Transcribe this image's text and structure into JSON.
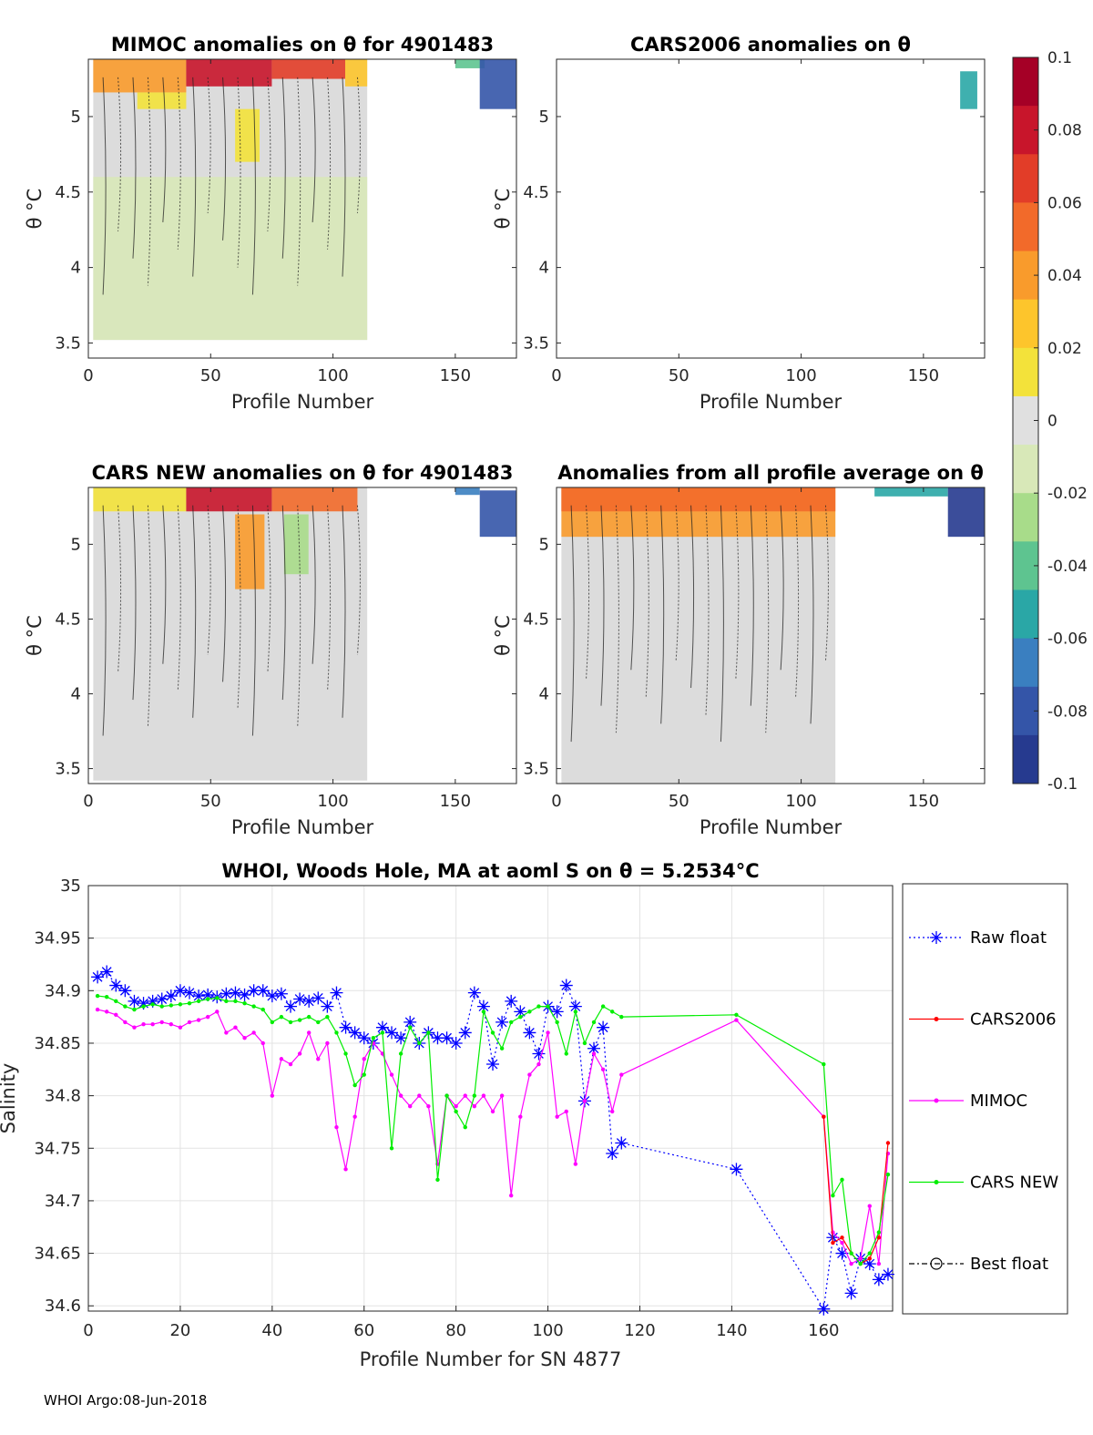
{
  "footer": "WHOI Argo:08-Jun-2018",
  "colorbar": {
    "ticks": [
      "0.1",
      "0.08",
      "0.06",
      "0.04",
      "0.02",
      "0",
      "-0.02",
      "-0.04",
      "-0.06",
      "-0.08",
      "-0.1"
    ],
    "colors": [
      "#a50026",
      "#c8152b",
      "#e23d28",
      "#f26a2a",
      "#f99b2c",
      "#fdc52c",
      "#f3e23a",
      "#e0e0e0",
      "#d8e8b8",
      "#a8dc8a",
      "#5ec490",
      "#2aa7a6",
      "#3a7fc0",
      "#3455a8",
      "#263a8f"
    ]
  },
  "panels": [
    {
      "title": "MIMOC anomalies on θ  for 4901483",
      "xlabel": "Profile Number",
      "ylabel": "θ °C",
      "xticks": [
        "0",
        "50",
        "100",
        "150"
      ],
      "yticks": [
        "5",
        "4.5",
        "4",
        "3.5"
      ],
      "xlim": [
        0,
        175
      ],
      "ylim": [
        3.4,
        5.38
      ],
      "extent": [
        2,
        114
      ],
      "ybottom": 3.52,
      "blocks": [
        [
          2,
          40,
          5.16,
          5.38,
          "#f99b2c"
        ],
        [
          40,
          75,
          5.2,
          5.38,
          "#c8152b"
        ],
        [
          75,
          105,
          5.25,
          5.38,
          "#e23d28"
        ],
        [
          105,
          114,
          5.2,
          5.38,
          "#fdc52c"
        ],
        [
          20,
          40,
          5.05,
          5.16,
          "#f3e23a"
        ],
        [
          60,
          70,
          4.7,
          5.05,
          "#f3e23a"
        ],
        [
          2,
          114,
          3.52,
          4.6,
          "#d8e8b8"
        ],
        [
          150,
          162,
          5.32,
          5.38,
          "#5ec490"
        ],
        [
          160,
          175,
          5.05,
          5.38,
          "#3455a8"
        ]
      ]
    },
    {
      "title": "CARS2006 anomalies on θ",
      "xlabel": "Profile Number",
      "ylabel": "θ °C",
      "xticks": [
        "0",
        "50",
        "100",
        "150"
      ],
      "yticks": [
        "5",
        "4.5",
        "4",
        "3.5"
      ],
      "xlim": [
        0,
        175
      ],
      "ylim": [
        3.4,
        5.38
      ],
      "extent": null,
      "ybottom": null,
      "blocks": [
        [
          165,
          172,
          5.05,
          5.3,
          "#2aa7a6"
        ]
      ]
    },
    {
      "title": "CARS NEW anomalies on θ for 4901483",
      "xlabel": "Profile Number",
      "ylabel": "θ °C",
      "xticks": [
        "0",
        "50",
        "100",
        "150"
      ],
      "yticks": [
        "5",
        "4.5",
        "4",
        "3.5"
      ],
      "xlim": [
        0,
        175
      ],
      "ylim": [
        3.4,
        5.38
      ],
      "extent": [
        2,
        114
      ],
      "ybottom": 3.42,
      "blocks": [
        [
          2,
          40,
          5.22,
          5.38,
          "#f3e23a"
        ],
        [
          40,
          75,
          5.22,
          5.38,
          "#c8152b"
        ],
        [
          75,
          110,
          5.22,
          5.38,
          "#f26a2a"
        ],
        [
          60,
          72,
          4.7,
          5.2,
          "#f99b2c"
        ],
        [
          80,
          90,
          4.8,
          5.2,
          "#a8dc8a"
        ],
        [
          150,
          160,
          5.33,
          5.38,
          "#3a7fc0"
        ],
        [
          160,
          175,
          5.05,
          5.36,
          "#3455a8"
        ]
      ]
    },
    {
      "title": "Anomalies from all profile average on θ",
      "xlabel": "Profile Number",
      "ylabel": "θ °C",
      "xticks": [
        "0",
        "50",
        "100",
        "150"
      ],
      "yticks": [
        "5",
        "4.5",
        "4",
        "3.5"
      ],
      "xlim": [
        0,
        175
      ],
      "ylim": [
        3.4,
        5.38
      ],
      "extent": [
        2,
        114
      ],
      "ybottom": 3.38,
      "blocks": [
        [
          2,
          114,
          5.05,
          5.38,
          "#f99b2c"
        ],
        [
          2,
          114,
          5.22,
          5.38,
          "#f26a2a"
        ],
        [
          130,
          160,
          5.32,
          5.38,
          "#2aa7a6"
        ],
        [
          160,
          175,
          5.05,
          5.38,
          "#263a8f"
        ]
      ]
    }
  ],
  "chart_data": {
    "type": "line",
    "title": "WHOI, Woods Hole, MA at aoml S on θ = 5.2534°C",
    "xlabel": "Profile Number for SN 4877",
    "ylabel": "Salinity",
    "xlim": [
      0,
      175
    ],
    "ylim": [
      34.595,
      35.0
    ],
    "xticks": [
      "0",
      "20",
      "40",
      "60",
      "80",
      "100",
      "120",
      "140",
      "160"
    ],
    "yticks": [
      "35",
      "34.95",
      "34.9",
      "34.85",
      "34.8",
      "34.75",
      "34.7",
      "34.65",
      "34.6"
    ],
    "grid": true,
    "legend": [
      "Raw float",
      "CARS2006",
      "MIMOC",
      "CARS NEW",
      "Best float"
    ],
    "colors": {
      "raw": "#0000ff",
      "cars2006": "#ff0000",
      "mimoc": "#ff00ff",
      "carsnew": "#00ee00",
      "best": "#000000"
    },
    "series": [
      {
        "name": "Raw float",
        "x": [
          2,
          4,
          6,
          8,
          10,
          12,
          14,
          16,
          18,
          20,
          22,
          24,
          26,
          28,
          30,
          32,
          34,
          36,
          38,
          40,
          42,
          44,
          46,
          48,
          50,
          52,
          54,
          56,
          58,
          60,
          62,
          64,
          66,
          68,
          70,
          72,
          74,
          76,
          78,
          80,
          82,
          84,
          86,
          88,
          90,
          92,
          94,
          96,
          98,
          100,
          102,
          104,
          106,
          108,
          110,
          112,
          114,
          116,
          141,
          160,
          162,
          164,
          166,
          168,
          170,
          172,
          174
        ],
        "y": [
          34.913,
          34.918,
          34.905,
          34.9,
          34.89,
          34.888,
          34.89,
          34.892,
          34.895,
          34.9,
          34.898,
          34.895,
          34.896,
          34.894,
          34.897,
          34.898,
          34.896,
          34.9,
          34.9,
          34.895,
          34.897,
          34.885,
          34.892,
          34.89,
          34.893,
          34.885,
          34.898,
          34.865,
          34.86,
          34.855,
          34.85,
          34.865,
          34.86,
          34.855,
          34.87,
          34.85,
          34.86,
          34.855,
          34.855,
          34.85,
          34.86,
          34.898,
          34.885,
          34.83,
          34.87,
          34.89,
          34.88,
          34.86,
          34.84,
          34.885,
          34.88,
          34.905,
          34.885,
          34.795,
          34.845,
          34.865,
          34.745,
          34.755,
          34.73,
          34.597,
          34.665,
          34.65,
          34.612,
          34.645,
          34.64,
          34.625,
          34.63
        ]
      },
      {
        "name": "CARS2006",
        "x": [
          160,
          162,
          164,
          166,
          168,
          170,
          172,
          174
        ],
        "y": [
          34.78,
          34.66,
          34.665,
          34.65,
          34.64,
          34.645,
          34.665,
          34.755
        ]
      },
      {
        "name": "MIMOC",
        "x": [
          2,
          4,
          6,
          8,
          10,
          12,
          14,
          16,
          18,
          20,
          22,
          24,
          26,
          28,
          30,
          32,
          34,
          36,
          38,
          40,
          42,
          44,
          46,
          48,
          50,
          52,
          54,
          56,
          58,
          60,
          62,
          64,
          66,
          68,
          70,
          72,
          74,
          76,
          78,
          80,
          82,
          84,
          86,
          88,
          90,
          92,
          94,
          96,
          98,
          100,
          102,
          104,
          106,
          108,
          110,
          112,
          114,
          116,
          141,
          160,
          162,
          164,
          166,
          168,
          170,
          172,
          174
        ],
        "y": [
          34.882,
          34.88,
          34.877,
          34.87,
          34.865,
          34.868,
          34.868,
          34.87,
          34.868,
          34.865,
          34.87,
          34.872,
          34.875,
          34.88,
          34.86,
          34.865,
          34.855,
          34.86,
          34.85,
          34.8,
          34.835,
          34.83,
          34.84,
          34.86,
          34.835,
          34.85,
          34.77,
          34.73,
          34.78,
          34.835,
          34.85,
          34.84,
          34.82,
          34.8,
          34.79,
          34.8,
          34.79,
          34.735,
          34.8,
          34.79,
          34.8,
          34.79,
          34.8,
          34.785,
          34.8,
          34.705,
          34.78,
          34.82,
          34.83,
          34.86,
          34.78,
          34.785,
          34.735,
          34.795,
          34.84,
          34.825,
          34.785,
          34.82,
          34.872,
          34.78,
          34.67,
          34.66,
          34.64,
          34.645,
          34.695,
          34.64,
          34.745
        ]
      },
      {
        "name": "CARS NEW",
        "x": [
          2,
          4,
          6,
          8,
          10,
          12,
          14,
          16,
          18,
          20,
          22,
          24,
          26,
          28,
          30,
          32,
          34,
          36,
          38,
          40,
          42,
          44,
          46,
          48,
          50,
          52,
          54,
          56,
          58,
          60,
          62,
          64,
          66,
          68,
          70,
          72,
          74,
          76,
          78,
          80,
          82,
          84,
          86,
          88,
          90,
          92,
          94,
          96,
          98,
          100,
          102,
          104,
          106,
          108,
          110,
          112,
          114,
          116,
          141,
          160,
          162,
          164,
          166,
          168,
          170,
          172,
          174
        ],
        "y": [
          34.895,
          34.894,
          34.89,
          34.885,
          34.882,
          34.885,
          34.887,
          34.885,
          34.886,
          34.887,
          34.888,
          34.89,
          34.892,
          34.893,
          34.89,
          34.89,
          34.888,
          34.885,
          34.882,
          34.87,
          34.875,
          34.87,
          34.872,
          34.875,
          34.87,
          34.875,
          34.86,
          34.84,
          34.81,
          34.82,
          34.855,
          34.86,
          34.75,
          34.84,
          34.865,
          34.85,
          34.86,
          34.72,
          34.8,
          34.785,
          34.77,
          34.8,
          34.88,
          34.86,
          34.845,
          34.87,
          34.875,
          34.88,
          34.885,
          34.885,
          34.87,
          34.84,
          34.88,
          34.85,
          34.87,
          34.885,
          34.88,
          34.875,
          34.877,
          34.83,
          34.705,
          34.72,
          34.65,
          34.64,
          34.65,
          34.67,
          34.725
        ]
      },
      {
        "name": "Best float",
        "x": [],
        "y": []
      }
    ]
  }
}
